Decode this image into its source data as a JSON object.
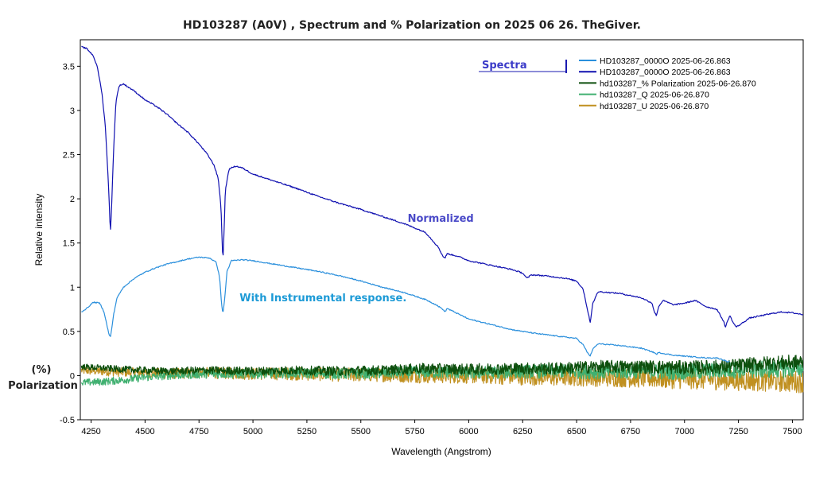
{
  "chart_data": {
    "type": "line",
    "title": "HD103287 (A0V) , Spectrum and % Polarization on 2025 06 26. TheGiver.",
    "xlabel": "Wavelength (Angstrom)",
    "ylabel": "Relative intensity",
    "xlim": [
      4200,
      7550
    ],
    "ylim": [
      -0.5,
      3.8
    ],
    "x_ticks": [
      4250,
      4500,
      4750,
      5000,
      5250,
      5500,
      5750,
      6000,
      6250,
      6500,
      6750,
      7000,
      7250,
      7500
    ],
    "y_ticks": [
      -0.5,
      0,
      0.5,
      1,
      1.5,
      2,
      2.5,
      3,
      3.5
    ],
    "grid": false,
    "legend_position": "top-right",
    "legend_header": "Spectra",
    "series": [
      {
        "name": "HD103287_0000O  2025-06-26.863",
        "color": "#2a8fdc",
        "x": [
          4205,
          4230,
          4260,
          4290,
          4310,
          4325,
          4335,
          4340,
          4345,
          4355,
          4370,
          4400,
          4450,
          4500,
          4550,
          4600,
          4650,
          4700,
          4750,
          4800,
          4830,
          4845,
          4855,
          4861,
          4867,
          4880,
          4900,
          4950,
          5000,
          5050,
          5100,
          5150,
          5200,
          5250,
          5300,
          5400,
          5500,
          5600,
          5700,
          5800,
          5850,
          5880,
          5890,
          5900,
          5950,
          6000,
          6100,
          6200,
          6250,
          6300,
          6400,
          6500,
          6530,
          6550,
          6563,
          6575,
          6600,
          6700,
          6800,
          6860,
          6870,
          6880,
          6950,
          7000,
          7100,
          7150,
          7190,
          7200,
          7210
        ],
        "y": [
          0.72,
          0.76,
          0.83,
          0.82,
          0.72,
          0.55,
          0.45,
          0.44,
          0.52,
          0.7,
          0.88,
          1.0,
          1.1,
          1.17,
          1.22,
          1.26,
          1.29,
          1.32,
          1.34,
          1.33,
          1.28,
          1.12,
          0.8,
          0.7,
          0.82,
          1.18,
          1.3,
          1.31,
          1.3,
          1.28,
          1.26,
          1.24,
          1.22,
          1.2,
          1.18,
          1.13,
          1.07,
          1.0,
          0.94,
          0.86,
          0.8,
          0.75,
          0.72,
          0.76,
          0.7,
          0.64,
          0.58,
          0.52,
          0.5,
          0.48,
          0.45,
          0.42,
          0.35,
          0.26,
          0.22,
          0.3,
          0.36,
          0.34,
          0.31,
          0.26,
          0.24,
          0.26,
          0.23,
          0.22,
          0.2,
          0.2,
          0.17,
          0.15,
          0.17
        ]
      },
      {
        "name": "HD103287_0000O  2025-06-26.863",
        "color": "#1010b0",
        "x": [
          4205,
          4230,
          4260,
          4280,
          4300,
          4315,
          4330,
          4337,
          4340,
          4345,
          4355,
          4365,
          4380,
          4400,
          4450,
          4500,
          4550,
          4600,
          4650,
          4700,
          4750,
          4790,
          4820,
          4840,
          4852,
          4858,
          4861,
          4865,
          4872,
          4890,
          4920,
          4950,
          5000,
          5100,
          5200,
          5300,
          5400,
          5500,
          5600,
          5700,
          5800,
          5860,
          5880,
          5890,
          5900,
          5950,
          6000,
          6100,
          6200,
          6250,
          6270,
          6290,
          6350,
          6450,
          6500,
          6530,
          6550,
          6563,
          6575,
          6600,
          6700,
          6800,
          6850,
          6860,
          6870,
          6880,
          6900,
          6950,
          7000,
          7050,
          7100,
          7150,
          7180,
          7190,
          7200,
          7210,
          7225,
          7240,
          7260,
          7300,
          7400,
          7450,
          7500,
          7550
        ],
        "y": [
          3.72,
          3.7,
          3.62,
          3.48,
          3.2,
          2.85,
          2.2,
          1.75,
          1.65,
          1.9,
          2.6,
          3.1,
          3.28,
          3.3,
          3.22,
          3.12,
          3.05,
          2.96,
          2.85,
          2.75,
          2.62,
          2.5,
          2.38,
          2.22,
          1.9,
          1.45,
          1.3,
          1.55,
          2.1,
          2.34,
          2.37,
          2.35,
          2.28,
          2.2,
          2.12,
          2.03,
          1.95,
          1.88,
          1.8,
          1.72,
          1.62,
          1.45,
          1.35,
          1.33,
          1.38,
          1.35,
          1.3,
          1.25,
          1.2,
          1.16,
          1.1,
          1.14,
          1.13,
          1.1,
          1.07,
          0.98,
          0.75,
          0.6,
          0.82,
          0.95,
          0.93,
          0.88,
          0.82,
          0.72,
          0.68,
          0.78,
          0.85,
          0.8,
          0.82,
          0.85,
          0.78,
          0.75,
          0.62,
          0.55,
          0.62,
          0.68,
          0.6,
          0.55,
          0.58,
          0.65,
          0.7,
          0.72,
          0.71,
          0.69
        ]
      },
      {
        "name": "hd103287_% Polarization  2025-06-26.870",
        "color": "#0d4f0d",
        "x": [
          4205,
          4400,
          4600,
          4800,
          5000,
          5200,
          5400,
          5600,
          5800,
          6000,
          6200,
          6400,
          6600,
          6800,
          7000,
          7200,
          7400,
          7550
        ],
        "y": [
          0.1,
          0.07,
          0.05,
          0.06,
          0.05,
          0.06,
          0.05,
          0.06,
          0.08,
          0.07,
          0.08,
          0.08,
          0.1,
          0.1,
          0.09,
          0.1,
          0.14,
          0.15
        ]
      },
      {
        "name": "hd103287_Q  2025-06-26.870",
        "color": "#40b070",
        "x": [
          4205,
          4300,
          4400,
          4500,
          4600,
          4800,
          5000,
          5200,
          5400,
          5600,
          5800,
          6000,
          6200,
          6400,
          6600,
          6800,
          7000,
          7200,
          7400,
          7550
        ],
        "y": [
          -0.08,
          -0.07,
          -0.05,
          -0.02,
          0.0,
          0.02,
          0.02,
          0.03,
          0.02,
          0.03,
          0.04,
          0.03,
          0.04,
          0.05,
          0.04,
          0.05,
          0.04,
          0.06,
          0.07,
          0.08
        ]
      },
      {
        "name": "hd103287_U  2025-06-26.870",
        "color": "#c09020",
        "x": [
          4205,
          4400,
          4600,
          4800,
          5000,
          5200,
          5400,
          5600,
          5800,
          6000,
          6200,
          6400,
          6600,
          6800,
          7000,
          7200,
          7400,
          7550
        ],
        "y": [
          0.06,
          0.04,
          0.02,
          0.03,
          0.02,
          0.02,
          0.01,
          0.01,
          0.0,
          0.0,
          -0.01,
          -0.02,
          -0.02,
          -0.03,
          -0.04,
          -0.05,
          -0.06,
          -0.07
        ]
      }
    ],
    "annotations": [
      {
        "text": "Normalized",
        "x": 5870,
        "y": 1.74,
        "color": "#4a4ac8"
      },
      {
        "text": "With Instrumental response.",
        "x": 5325,
        "y": 0.84,
        "color": "#1c9ad6"
      }
    ],
    "side_labels": [
      "(%)",
      "Polarization"
    ]
  }
}
